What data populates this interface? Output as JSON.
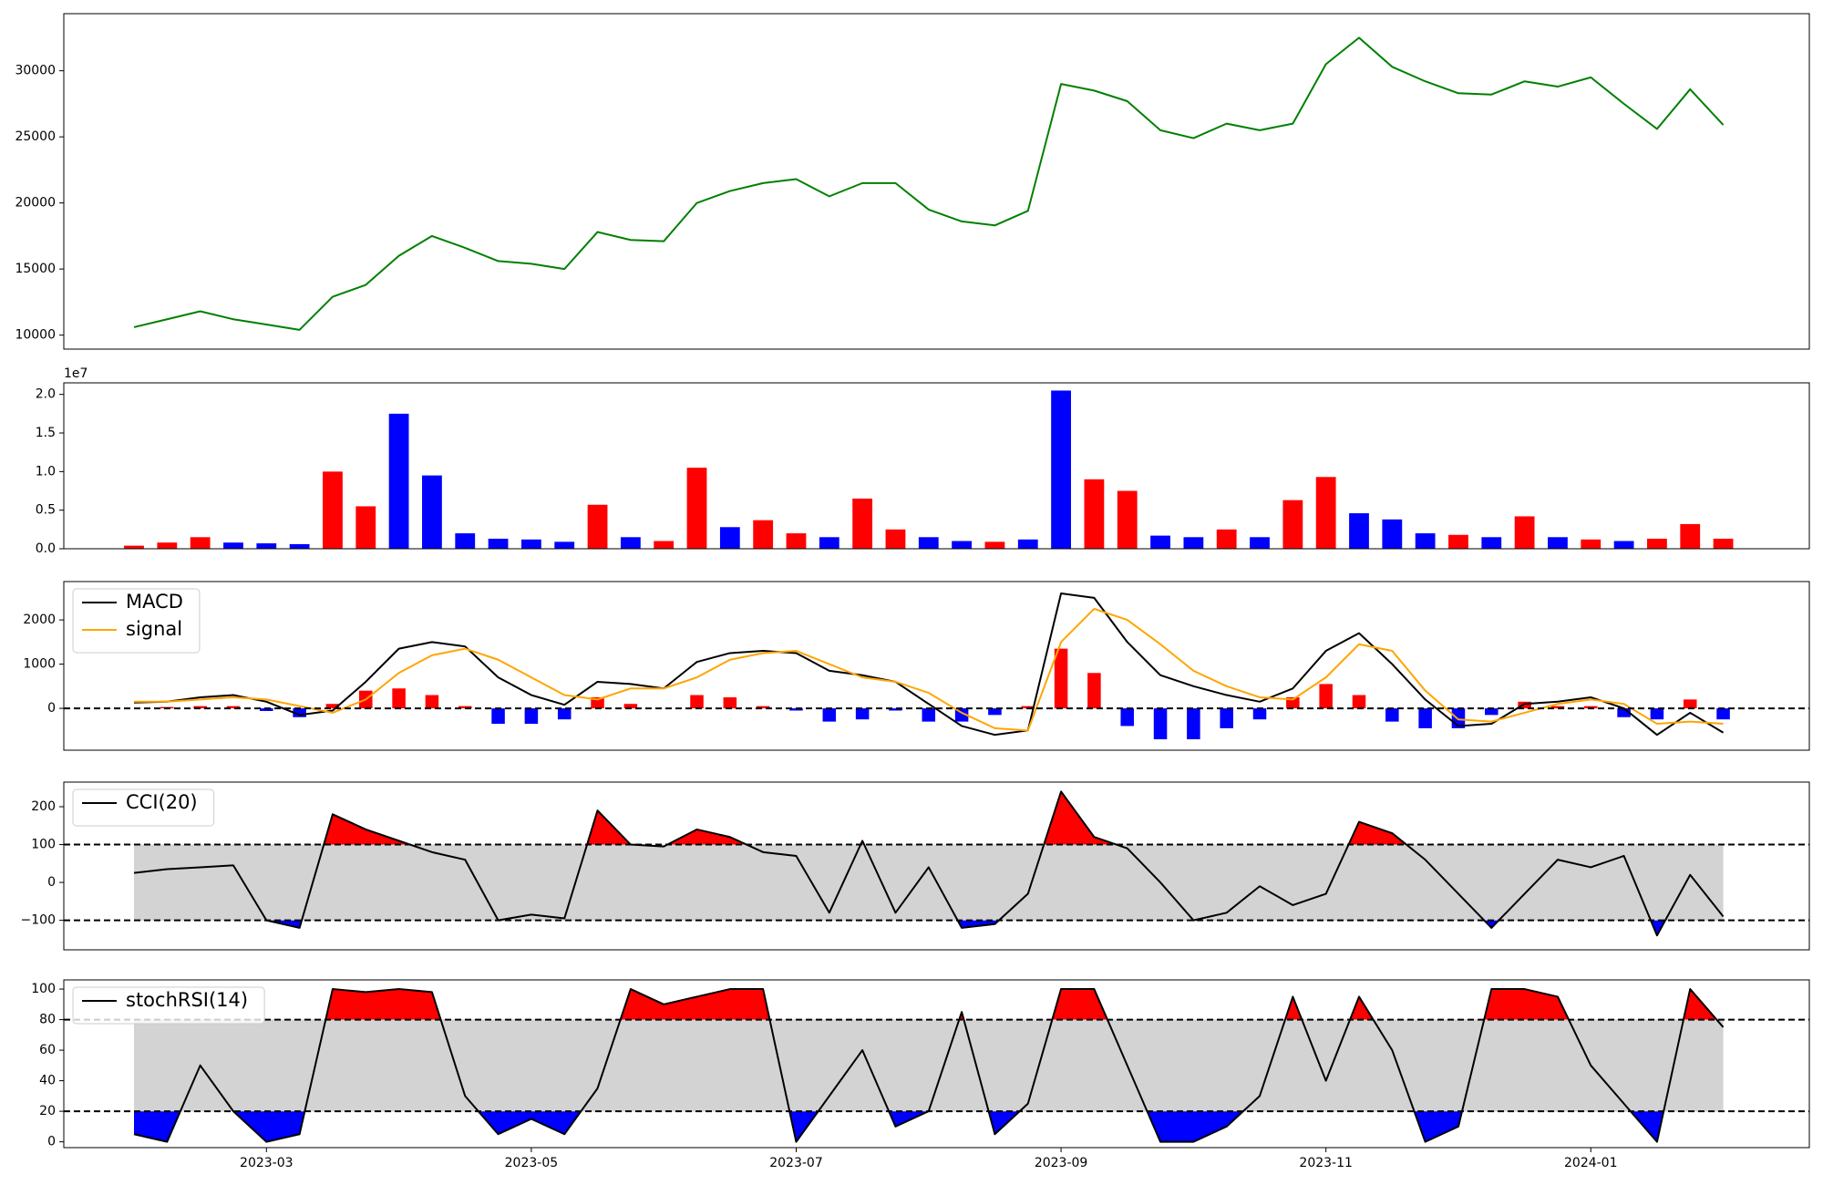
{
  "chart_data": [
    {
      "type": "line",
      "x": [
        1,
        1.25,
        1.5,
        1.75,
        2,
        2.25,
        2.5,
        2.75,
        3,
        3.25,
        3.5,
        3.75,
        4,
        4.25,
        4.5,
        4.75,
        5,
        5.25,
        5.5,
        5.75,
        6,
        6.25,
        6.5,
        6.75,
        7,
        7.25,
        7.5,
        7.75,
        8,
        8.25,
        8.5,
        8.75,
        9,
        9.25,
        9.5,
        9.75,
        10,
        10.25,
        10.5,
        10.75,
        11,
        11.25,
        11.5,
        11.75,
        12,
        12.25,
        12.5,
        12.75,
        13
      ],
      "series": [
        {
          "color": "green",
          "values": [
            10600,
            11200,
            11800,
            11200,
            10800,
            10400,
            12900,
            13800,
            16000,
            17500,
            16600,
            15600,
            15400,
            15000,
            17800,
            17200,
            17100,
            20000,
            20900,
            21500,
            21800,
            20500,
            21500,
            21500,
            19500,
            18600,
            18300,
            19400,
            29000,
            28500,
            27700,
            25500,
            24900,
            26000,
            25500,
            26000,
            30500,
            32500,
            30300,
            29200,
            28300,
            28200,
            29200,
            28800,
            29500,
            27500,
            25600,
            28600,
            25900
          ]
        }
      ],
      "xlim": [
        0.47,
        13.65
      ],
      "ylim": [
        8940,
        34320
      ],
      "yticks": [
        10000,
        15000,
        20000,
        25000,
        30000
      ]
    },
    {
      "type": "bar",
      "x": [
        1,
        1.25,
        1.5,
        1.75,
        2,
        2.25,
        2.5,
        2.75,
        3,
        3.25,
        3.5,
        3.75,
        4,
        4.25,
        4.5,
        4.75,
        5,
        5.25,
        5.5,
        5.75,
        6,
        6.25,
        6.5,
        6.75,
        7,
        7.25,
        7.5,
        7.75,
        8,
        8.25,
        8.5,
        8.75,
        9,
        9.25,
        9.5,
        9.75,
        10,
        10.25,
        10.5,
        10.75,
        11,
        11.25,
        11.5,
        11.75,
        12,
        12.25,
        12.5,
        12.75,
        13
      ],
      "values": [
        400000,
        800000,
        1500000,
        800000,
        700000,
        600000,
        10000000,
        5500000,
        17500000,
        9500000,
        2000000,
        1300000,
        1200000,
        900000,
        5700000,
        1500000,
        1000000,
        10500000,
        2800000,
        3700000,
        2000000,
        1500000,
        6500000,
        2500000,
        1500000,
        1000000,
        900000,
        1200000,
        20500000,
        9000000,
        7500000,
        1700000,
        1500000,
        2500000,
        1500000,
        6300000,
        9300000,
        4600000,
        3800000,
        2000000,
        1800000,
        1500000,
        4200000,
        1500000,
        1200000,
        1000000,
        1300000,
        3200000,
        1300000
      ],
      "colors": [
        "red",
        "red",
        "red",
        "blue",
        "blue",
        "blue",
        "red",
        "red",
        "blue",
        "blue",
        "blue",
        "blue",
        "blue",
        "blue",
        "red",
        "blue",
        "red",
        "red",
        "blue",
        "red",
        "red",
        "blue",
        "red",
        "red",
        "blue",
        "blue",
        "red",
        "blue",
        "blue",
        "red",
        "red",
        "blue",
        "blue",
        "red",
        "blue",
        "red",
        "red",
        "blue",
        "blue",
        "blue",
        "red",
        "blue",
        "red",
        "blue",
        "red",
        "blue",
        "red",
        "red",
        "red"
      ],
      "xlim": [
        0.47,
        13.65
      ],
      "ylim": [
        0,
        21500000
      ],
      "offset_label": "1e7",
      "yticks": [
        {
          "value": 0,
          "label": "0.0"
        },
        {
          "value": 5000000,
          "label": "0.5"
        },
        {
          "value": 10000000,
          "label": "1.0"
        },
        {
          "value": 15000000,
          "label": "1.5"
        },
        {
          "value": 20000000,
          "label": "2.0"
        }
      ]
    },
    {
      "type": "line",
      "x": [
        1,
        1.25,
        1.5,
        1.75,
        2,
        2.25,
        2.5,
        2.75,
        3,
        3.25,
        3.5,
        3.75,
        4,
        4.25,
        4.5,
        4.75,
        5,
        5.25,
        5.5,
        5.75,
        6,
        6.25,
        6.5,
        6.75,
        7,
        7.25,
        7.5,
        7.75,
        8,
        8.25,
        8.5,
        8.75,
        9,
        9.25,
        9.5,
        9.75,
        10,
        10.25,
        10.5,
        10.75,
        11,
        11.25,
        11.5,
        11.75,
        12,
        12.25,
        12.5,
        12.75,
        13
      ],
      "series": [
        {
          "name": "MACD",
          "color": "black",
          "values": [
            130,
            150,
            250,
            300,
            150,
            -150,
            -50,
            600,
            1350,
            1500,
            1400,
            700,
            300,
            80,
            600,
            550,
            450,
            1050,
            1250,
            1300,
            1250,
            850,
            750,
            600,
            100,
            -400,
            -600,
            -500,
            2600,
            2500,
            1500,
            750,
            500,
            300,
            150,
            450,
            1300,
            1700,
            1000,
            200,
            -400,
            -350,
            100,
            150,
            250,
            0,
            -600,
            -100,
            -550
          ]
        },
        {
          "name": "signal",
          "color": "orange",
          "values": [
            150,
            150,
            200,
            250,
            200,
            50,
            -100,
            200,
            800,
            1200,
            1350,
            1100,
            700,
            300,
            200,
            450,
            450,
            700,
            1100,
            1250,
            1300,
            1000,
            700,
            600,
            350,
            -100,
            -450,
            -500,
            1500,
            2250,
            2000,
            1450,
            850,
            500,
            250,
            200,
            700,
            1450,
            1300,
            400,
            -250,
            -300,
            -100,
            100,
            200,
            100,
            -350,
            -300,
            -350
          ]
        },
        {
          "type": "bar",
          "positive_color": "red",
          "negative_color": "blue",
          "values": [
            0,
            30,
            50,
            50,
            -60,
            -200,
            100,
            400,
            450,
            300,
            50,
            -350,
            -350,
            -250,
            250,
            100,
            0,
            300,
            250,
            50,
            -50,
            -300,
            -250,
            -50,
            -300,
            -300,
            -150,
            50,
            1350,
            800,
            -400,
            -700,
            -700,
            -450,
            -250,
            250,
            550,
            300,
            -300,
            -450,
            -450,
            -150,
            150,
            50,
            50,
            -200,
            -250,
            200,
            -250
          ]
        }
      ],
      "zero_line": true,
      "legend": "upper left",
      "xlim": [
        0.47,
        13.65
      ],
      "ylim": [
        -947,
        2868
      ],
      "yticks": [
        0,
        1000,
        2000
      ]
    },
    {
      "type": "line",
      "x": [
        1,
        1.25,
        1.5,
        1.75,
        2,
        2.25,
        2.5,
        2.75,
        3,
        3.25,
        3.5,
        3.75,
        4,
        4.25,
        4.5,
        4.75,
        5,
        5.25,
        5.5,
        5.75,
        6,
        6.25,
        6.5,
        6.75,
        7,
        7.25,
        7.5,
        7.75,
        8,
        8.25,
        8.5,
        8.75,
        9,
        9.25,
        9.5,
        9.75,
        10,
        10.25,
        10.5,
        10.75,
        11,
        11.25,
        11.5,
        11.75,
        12,
        12.25,
        12.5,
        12.75,
        13
      ],
      "series": [
        {
          "name": "CCI(20)",
          "color": "black",
          "values": [
            25,
            35,
            40,
            45,
            -100,
            -120,
            180,
            140,
            110,
            80,
            60,
            -100,
            -85,
            -95,
            190,
            100,
            95,
            140,
            120,
            80,
            70,
            -80,
            110,
            -80,
            40,
            -120,
            -110,
            -30,
            240,
            120,
            90,
            0,
            -100,
            -80,
            -10,
            -60,
            -30,
            160,
            130,
            60,
            -30,
            -120,
            -30,
            60,
            40,
            70,
            -140,
            20,
            -90
          ]
        }
      ],
      "thresholds": [
        -100,
        100
      ],
      "band_color": "lightgray",
      "overbought_color": "red",
      "oversold_color": "blue",
      "legend": "upper left",
      "xlim": [
        0.47,
        13.65
      ],
      "ylim": [
        -178,
        265
      ],
      "yticks": [
        {
          "value": -100,
          "label": "−100"
        },
        0,
        100,
        200
      ]
    },
    {
      "type": "line",
      "x": [
        1,
        1.25,
        1.5,
        1.75,
        2,
        2.25,
        2.5,
        2.75,
        3,
        3.25,
        3.5,
        3.75,
        4,
        4.25,
        4.5,
        4.75,
        5,
        5.25,
        5.5,
        5.75,
        6,
        6.25,
        6.5,
        6.75,
        7,
        7.25,
        7.5,
        7.75,
        8,
        8.25,
        8.5,
        8.75,
        9,
        9.25,
        9.5,
        9.75,
        10,
        10.25,
        10.5,
        10.75,
        11,
        11.25,
        11.5,
        11.75,
        12,
        12.25,
        12.5,
        12.75,
        13
      ],
      "series": [
        {
          "name": "stochRSI(14)",
          "color": "black",
          "values": [
            5,
            0,
            50,
            20,
            0,
            5,
            100,
            98,
            100,
            98,
            30,
            5,
            15,
            5,
            35,
            100,
            90,
            95,
            100,
            100,
            0,
            30,
            60,
            10,
            20,
            85,
            5,
            25,
            100,
            100,
            50,
            0,
            0,
            10,
            30,
            95,
            40,
            95,
            60,
            0,
            10,
            100,
            100,
            95,
            50,
            25,
            0,
            100,
            75
          ]
        }
      ],
      "thresholds": [
        20,
        80
      ],
      "band_color": "lightgray",
      "overbought_color": "red",
      "oversold_color": "blue",
      "legend": "upper left",
      "xlim": [
        0.47,
        13.65
      ],
      "ylim": [
        -3.8,
        106
      ],
      "yticks": [
        0,
        20,
        40,
        60,
        80,
        100
      ],
      "xticks": [
        {
          "value": 2,
          "label": "2023-03"
        },
        {
          "value": 4,
          "label": "2023-05"
        },
        {
          "value": 6,
          "label": "2023-07"
        },
        {
          "value": 8,
          "label": "2023-09"
        },
        {
          "value": 10,
          "label": "2023-11"
        },
        {
          "value": 12,
          "label": "2024-01"
        }
      ]
    }
  ]
}
